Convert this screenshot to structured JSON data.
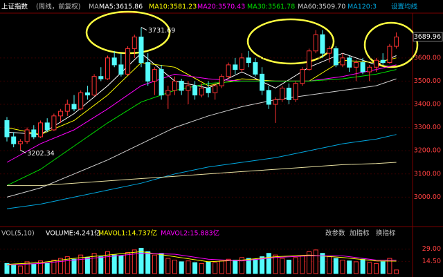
{
  "chart_data": [
    {
      "type": "candlestick",
      "title": "上证指数",
      "subtitle": "(周线，前复权)",
      "ma_label": "MA",
      "settings_label": "设置均线",
      "up_color": "#ff3232",
      "down_color": "#54fcfc",
      "open": [
        3330,
        3260,
        3230,
        3240,
        3290,
        3260,
        3320,
        3290,
        3350,
        3370,
        3400,
        3380,
        3450,
        3440,
        3520,
        3510,
        3600,
        3570,
        3530,
        3640,
        3690,
        3580,
        3500,
        3550,
        3440,
        3460,
        3500,
        3460,
        3480,
        3440,
        3470,
        3450,
        3480,
        3520,
        3570,
        3550,
        3600,
        3580,
        3530,
        3460,
        3400,
        3420,
        3470,
        3420,
        3490,
        3550,
        3630,
        3700,
        3620,
        3640,
        3570,
        3600,
        3560,
        3580,
        3540,
        3560,
        3590,
        3580,
        3650
      ],
      "high": [
        3345,
        3280,
        3250,
        3300,
        3310,
        3330,
        3340,
        3360,
        3380,
        3420,
        3440,
        3460,
        3480,
        3530,
        3560,
        3610,
        3630,
        3620,
        3650,
        3700,
        3731.69,
        3620,
        3560,
        3570,
        3480,
        3520,
        3510,
        3500,
        3500,
        3490,
        3500,
        3490,
        3530,
        3580,
        3600,
        3620,
        3630,
        3600,
        3560,
        3480,
        3430,
        3480,
        3490,
        3500,
        3560,
        3640,
        3720,
        3720,
        3650,
        3650,
        3620,
        3610,
        3590,
        3600,
        3570,
        3600,
        3620,
        3660,
        3710
      ],
      "low": [
        3240,
        3215,
        3202.34,
        3230,
        3250,
        3255,
        3280,
        3285,
        3320,
        3350,
        3370,
        3375,
        3420,
        3435,
        3500,
        3505,
        3560,
        3520,
        3525,
        3600,
        3560,
        3480,
        3440,
        3420,
        3380,
        3440,
        3440,
        3400,
        3420,
        3430,
        3430,
        3420,
        3470,
        3510,
        3530,
        3540,
        3560,
        3520,
        3440,
        3380,
        3320,
        3410,
        3400,
        3410,
        3480,
        3545,
        3620,
        3600,
        3580,
        3560,
        3560,
        3540,
        3500,
        3530,
        3500,
        3540,
        3570,
        3575,
        3640
      ],
      "close": [
        3260,
        3230,
        3240,
        3290,
        3260,
        3320,
        3290,
        3350,
        3370,
        3400,
        3380,
        3450,
        3440,
        3520,
        3510,
        3600,
        3570,
        3530,
        3640,
        3690,
        3580,
        3500,
        3550,
        3440,
        3460,
        3500,
        3460,
        3480,
        3440,
        3470,
        3450,
        3480,
        3520,
        3570,
        3550,
        3600,
        3580,
        3530,
        3460,
        3400,
        3420,
        3470,
        3420,
        3490,
        3550,
        3630,
        3700,
        3620,
        3640,
        3570,
        3600,
        3560,
        3580,
        3540,
        3560,
        3590,
        3580,
        3650,
        3689.96
      ],
      "ylim": [
        2897,
        3793
      ],
      "yticks": [
        {
          "value": 3000,
          "label": "3000.00"
        },
        {
          "value": 3100,
          "label": "3100.00"
        },
        {
          "value": 3200,
          "label": "3200.00"
        },
        {
          "value": 3300,
          "label": "3300.00"
        },
        {
          "value": 3400,
          "label": "3400.00"
        },
        {
          "value": 3500,
          "label": "3500.00"
        },
        {
          "value": 3600,
          "label": "3600.00"
        }
      ],
      "annotations": [
        {
          "x": 20,
          "value": 3731.69
        },
        {
          "x": 2,
          "value": 3202.34
        },
        {
          "x": 58,
          "value": 3689.96
        }
      ],
      "series": [
        {
          "name": "MA5:3615.86",
          "color": "#ffffff",
          "x": [
            0,
            5,
            10,
            15,
            20,
            25,
            30,
            35,
            40,
            45,
            50,
            55,
            58
          ],
          "values": [
            3280,
            3270,
            3360,
            3480,
            3620,
            3500,
            3470,
            3540,
            3470,
            3560,
            3620,
            3570,
            3610
          ]
        },
        {
          "name": "MA10:3581.23",
          "color": "#ffff00",
          "x": [
            0,
            5,
            10,
            15,
            20,
            25,
            30,
            35,
            40,
            45,
            50,
            55,
            58
          ],
          "values": [
            3300,
            3270,
            3330,
            3440,
            3580,
            3560,
            3480,
            3510,
            3500,
            3500,
            3590,
            3580,
            3600
          ]
        },
        {
          "name": "MA20:3570.43",
          "color": "#ff00ff",
          "x": [
            0,
            5,
            10,
            15,
            20,
            25,
            30,
            35,
            40,
            45,
            50,
            55,
            58
          ],
          "values": [
            3150,
            3230,
            3290,
            3380,
            3480,
            3530,
            3510,
            3500,
            3500,
            3500,
            3520,
            3550,
            3570
          ]
        },
        {
          "name": "MA30:3561.78",
          "color": "#00e000",
          "x": [
            0,
            5,
            10,
            15,
            20,
            25,
            30,
            35,
            40,
            45,
            50,
            55,
            58
          ],
          "values": [
            3050,
            3120,
            3220,
            3320,
            3410,
            3460,
            3490,
            3500,
            3500,
            3500,
            3510,
            3530,
            3550
          ]
        },
        {
          "name": "MA60:3509.70",
          "color": "#d0d0d0",
          "x": [
            0,
            5,
            10,
            15,
            20,
            25,
            30,
            35,
            40,
            45,
            50,
            55,
            58
          ],
          "values": [
            3000,
            3040,
            3100,
            3160,
            3230,
            3300,
            3350,
            3390,
            3420,
            3440,
            3460,
            3480,
            3510
          ]
        },
        {
          "name": "MA120:3",
          "color": "#00a8e0",
          "x": [
            0,
            5,
            10,
            15,
            20,
            25,
            30,
            35,
            40,
            45,
            50,
            55,
            58
          ],
          "values": [
            2950,
            2970,
            3000,
            3030,
            3060,
            3100,
            3130,
            3150,
            3170,
            3200,
            3230,
            3250,
            3270
          ]
        },
        {
          "color": "#e8e0a0",
          "x": [
            0,
            5,
            10,
            15,
            20,
            25,
            30,
            35,
            40,
            45,
            50,
            55,
            58
          ],
          "values": [
            3050,
            3050,
            3060,
            3070,
            3080,
            3090,
            3100,
            3110,
            3120,
            3130,
            3140,
            3145,
            3150
          ]
        }
      ]
    },
    {
      "type": "volume",
      "title": "VOL(5,10)",
      "volume_label": "VOLUME:4.241亿",
      "buttons": [
        "改参数",
        "加指标",
        "换指标"
      ],
      "values": [
        12,
        10,
        9,
        14,
        11,
        15,
        12,
        16,
        18,
        20,
        17,
        22,
        19,
        24,
        20,
        26,
        22,
        21,
        25,
        28,
        30,
        26,
        22,
        24,
        18,
        16,
        14,
        15,
        13,
        12,
        14,
        13,
        15,
        17,
        16,
        19,
        18,
        17,
        20,
        24,
        22,
        18,
        16,
        19,
        21,
        26,
        28,
        24,
        20,
        18,
        16,
        15,
        14,
        17,
        13,
        12,
        14,
        18,
        4.241
      ],
      "ylim": [
        0,
        41
      ],
      "yticks": [
        {
          "value": 14.5,
          "label": "14.50"
        },
        {
          "value": 29,
          "label": "29.00"
        }
      ],
      "series": [
        {
          "name": "MAVOL1:14.737亿",
          "color": "#ffff00",
          "x": [
            0,
            5,
            10,
            15,
            20,
            25,
            30,
            35,
            40,
            45,
            50,
            55,
            58
          ],
          "values": [
            11,
            13,
            18,
            22,
            26,
            20,
            14,
            16,
            20,
            22,
            19,
            15,
            14.737
          ]
        },
        {
          "name": "MAVOL2:15.883亿",
          "color": "#ff00ff",
          "x": [
            0,
            5,
            10,
            15,
            20,
            25,
            30,
            35,
            40,
            45,
            50,
            55,
            58
          ],
          "values": [
            10,
            12,
            16,
            20,
            24,
            23,
            17,
            15,
            19,
            21,
            21,
            16,
            15.883
          ]
        }
      ]
    }
  ]
}
